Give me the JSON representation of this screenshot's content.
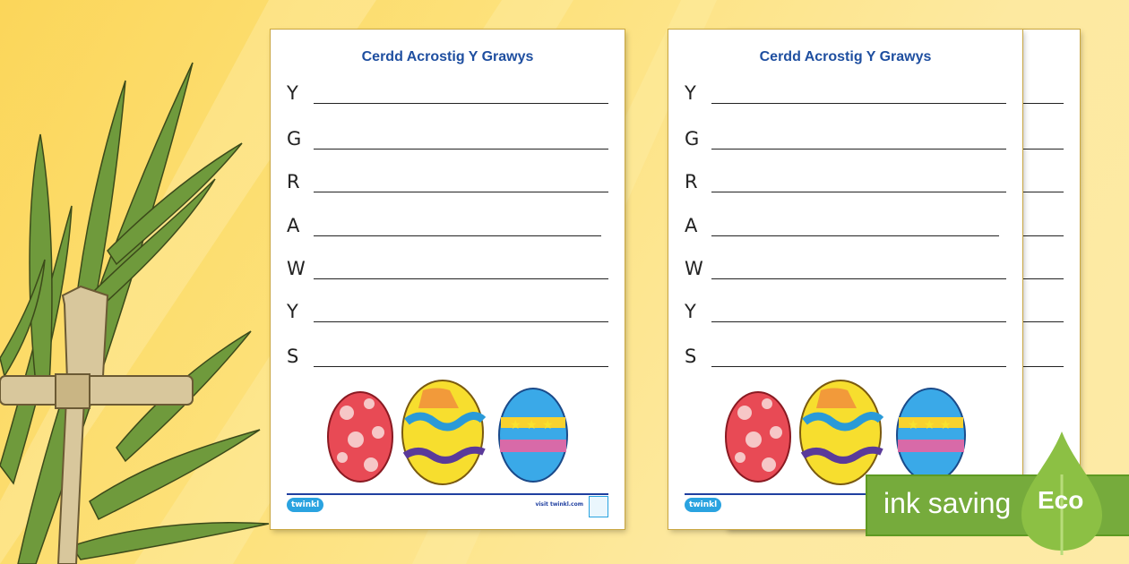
{
  "worksheet": {
    "title": "Cerdd Acrostig Y Grawys",
    "letters": [
      "Y",
      "G",
      "R",
      "A",
      "W",
      "Y",
      "S"
    ],
    "logo": "twinkl",
    "url": "visit twinkl.com"
  },
  "eco_badge": {
    "text": "ink saving",
    "label": "Eco",
    "color": "#76ab3c"
  },
  "colors": {
    "background": "#fde17a",
    "title": "#1f4fa0",
    "rule": "#1f3fa0"
  }
}
